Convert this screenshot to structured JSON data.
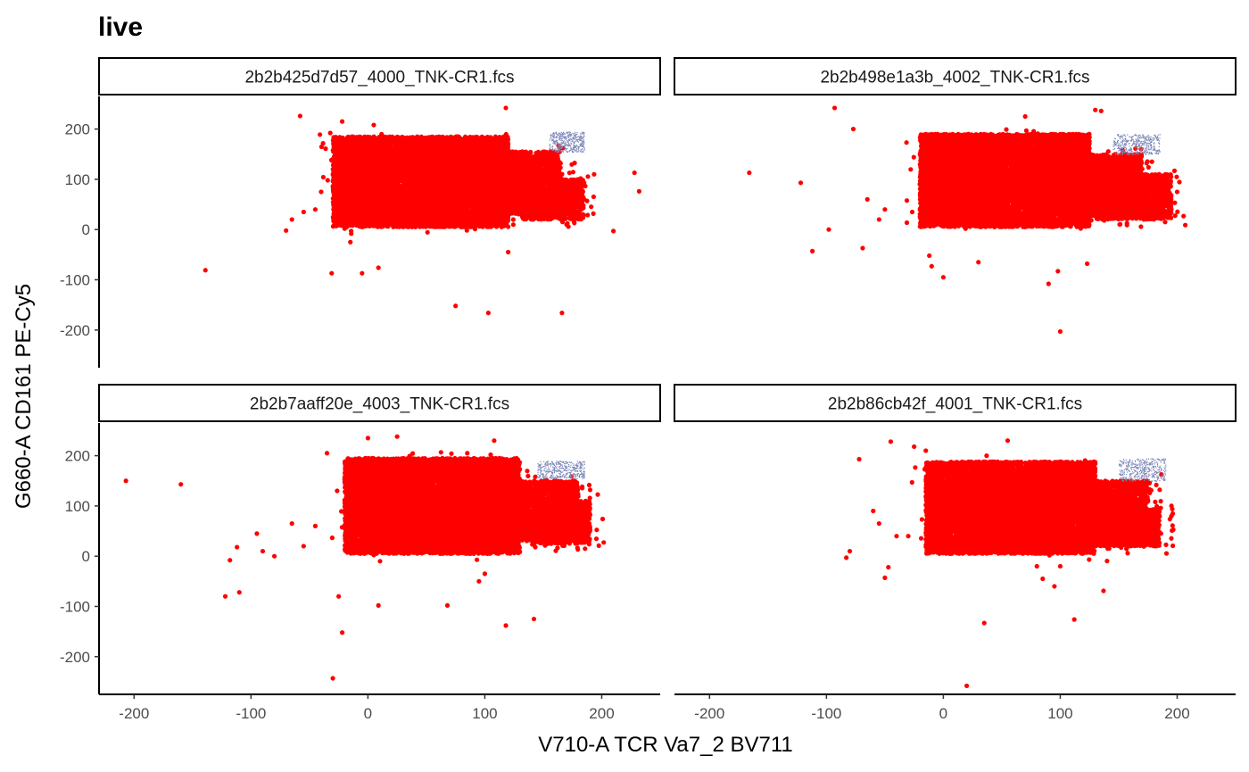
{
  "chart_data": {
    "type": "scatter",
    "title": "live",
    "xlabel": "V710-A TCR Va7_2 BV711",
    "ylabel": "G660-A CD161 PE-Cy5",
    "xlim": [
      -230,
      250
    ],
    "ylim": [
      -275,
      265
    ],
    "x_ticks": [
      -200,
      -100,
      0,
      100,
      200
    ],
    "y_ticks": [
      -200,
      -100,
      0,
      100,
      200
    ],
    "x_tick_labels": [
      "-200",
      "-100",
      "0",
      "100",
      "200"
    ],
    "y_tick_labels": [
      "-200",
      "-100",
      "0",
      "100",
      "200"
    ],
    "grid": false,
    "legend": "none",
    "layout": "2x2 facets, shared axes",
    "colors": {
      "events": "#ff0000",
      "gate": "#7b86b8"
    },
    "panels": [
      {
        "name": "2b2b425d7d57_4000_TNK-CR1.fcs",
        "main_cloud": [
          {
            "xmin": -30,
            "xmax": 120,
            "ymin": 5,
            "ymax": 185
          },
          {
            "xmin": 105,
            "xmax": 165,
            "ymin": 30,
            "ymax": 155
          },
          {
            "xmin": 130,
            "xmax": 185,
            "ymin": 20,
            "ymax": 100
          }
        ],
        "gate_cluster": {
          "x": [
            155,
            185
          ],
          "y": [
            155,
            195
          ]
        },
        "outliers": [
          [
            -139,
            -81
          ],
          [
            -58,
            226
          ],
          [
            -70,
            -2
          ],
          [
            -65,
            20
          ],
          [
            -45,
            40
          ],
          [
            -31,
            -87
          ],
          [
            -5,
            -87
          ],
          [
            9,
            -76
          ],
          [
            75,
            -152
          ],
          [
            103,
            -166
          ],
          [
            166,
            -166
          ],
          [
            210,
            -3
          ],
          [
            228,
            113
          ],
          [
            232,
            76
          ],
          [
            118,
            242
          ],
          [
            -22,
            215
          ],
          [
            5,
            208
          ],
          [
            -40,
            75
          ],
          [
            -55,
            35
          ],
          [
            -15,
            -25
          ],
          [
            120,
            -45
          ]
        ]
      },
      {
        "name": "2b2b498e1a3b_4002_TNK-CR1.fcs",
        "main_cloud": [
          {
            "xmin": -20,
            "xmax": 125,
            "ymin": 5,
            "ymax": 190
          },
          {
            "xmin": 110,
            "xmax": 170,
            "ymin": 25,
            "ymax": 150
          },
          {
            "xmin": 130,
            "xmax": 195,
            "ymin": 20,
            "ymax": 110
          }
        ],
        "gate_cluster": {
          "x": [
            145,
            185
          ],
          "y": [
            150,
            190
          ]
        },
        "outliers": [
          [
            -166,
            113
          ],
          [
            -122,
            93
          ],
          [
            -112,
            -43
          ],
          [
            -98,
            0
          ],
          [
            -93,
            242
          ],
          [
            -77,
            200
          ],
          [
            -69,
            -37
          ],
          [
            -65,
            60
          ],
          [
            -55,
            20
          ],
          [
            -50,
            40
          ],
          [
            -12,
            -52
          ],
          [
            -10,
            -73
          ],
          [
            0,
            -95
          ],
          [
            30,
            -65
          ],
          [
            90,
            -108
          ],
          [
            98,
            -83
          ],
          [
            100,
            -203
          ],
          [
            123,
            -68
          ],
          [
            130,
            238
          ],
          [
            135,
            236
          ],
          [
            70,
            225
          ],
          [
            200,
            75
          ],
          [
            195,
            40
          ]
        ]
      },
      {
        "name": "2b2b7aaff20e_4003_TNK-CR1.fcs",
        "main_cloud": [
          {
            "xmin": -20,
            "xmax": 130,
            "ymin": 5,
            "ymax": 195
          },
          {
            "xmin": 115,
            "xmax": 180,
            "ymin": 30,
            "ymax": 150
          },
          {
            "xmin": 140,
            "xmax": 190,
            "ymin": 25,
            "ymax": 110
          }
        ],
        "gate_cluster": {
          "x": [
            145,
            185
          ],
          "y": [
            155,
            190
          ]
        },
        "outliers": [
          [
            -207,
            150
          ],
          [
            -160,
            143
          ],
          [
            -122,
            -80
          ],
          [
            -118,
            -8
          ],
          [
            -112,
            18
          ],
          [
            -110,
            -72
          ],
          [
            -95,
            45
          ],
          [
            -90,
            10
          ],
          [
            -80,
            0
          ],
          [
            -65,
            65
          ],
          [
            -55,
            20
          ],
          [
            -45,
            60
          ],
          [
            -35,
            205
          ],
          [
            -30,
            -243
          ],
          [
            -25,
            -80
          ],
          [
            -22,
            -152
          ],
          [
            9,
            -98
          ],
          [
            68,
            -98
          ],
          [
            95,
            -50
          ],
          [
            100,
            -35
          ],
          [
            118,
            -138
          ],
          [
            142,
            -125
          ],
          [
            0,
            235
          ],
          [
            25,
            238
          ],
          [
            85,
            205
          ],
          [
            108,
            230
          ]
        ]
      },
      {
        "name": "2b2b86cb42f_4001_TNK-CR1.fcs",
        "main_cloud": [
          {
            "xmin": -15,
            "xmax": 130,
            "ymin": 5,
            "ymax": 188
          },
          {
            "xmin": 115,
            "xmax": 175,
            "ymin": 30,
            "ymax": 150
          },
          {
            "xmin": 130,
            "xmax": 185,
            "ymin": 20,
            "ymax": 95
          }
        ],
        "gate_cluster": {
          "x": [
            150,
            190
          ],
          "y": [
            150,
            195
          ]
        },
        "outliers": [
          [
            -83,
            -3
          ],
          [
            -80,
            10
          ],
          [
            -72,
            193
          ],
          [
            -60,
            90
          ],
          [
            -55,
            65
          ],
          [
            -50,
            -43
          ],
          [
            -47,
            -22
          ],
          [
            -45,
            228
          ],
          [
            -40,
            40
          ],
          [
            -30,
            40
          ],
          [
            -25,
            218
          ],
          [
            -15,
            210
          ],
          [
            35,
            -133
          ],
          [
            20,
            -258
          ],
          [
            55,
            230
          ],
          [
            80,
            -20
          ],
          [
            85,
            -45
          ],
          [
            95,
            -60
          ],
          [
            100,
            -20
          ],
          [
            112,
            -126
          ],
          [
            137,
            -69
          ],
          [
            170,
            90
          ],
          [
            180,
            40
          ]
        ]
      }
    ]
  }
}
